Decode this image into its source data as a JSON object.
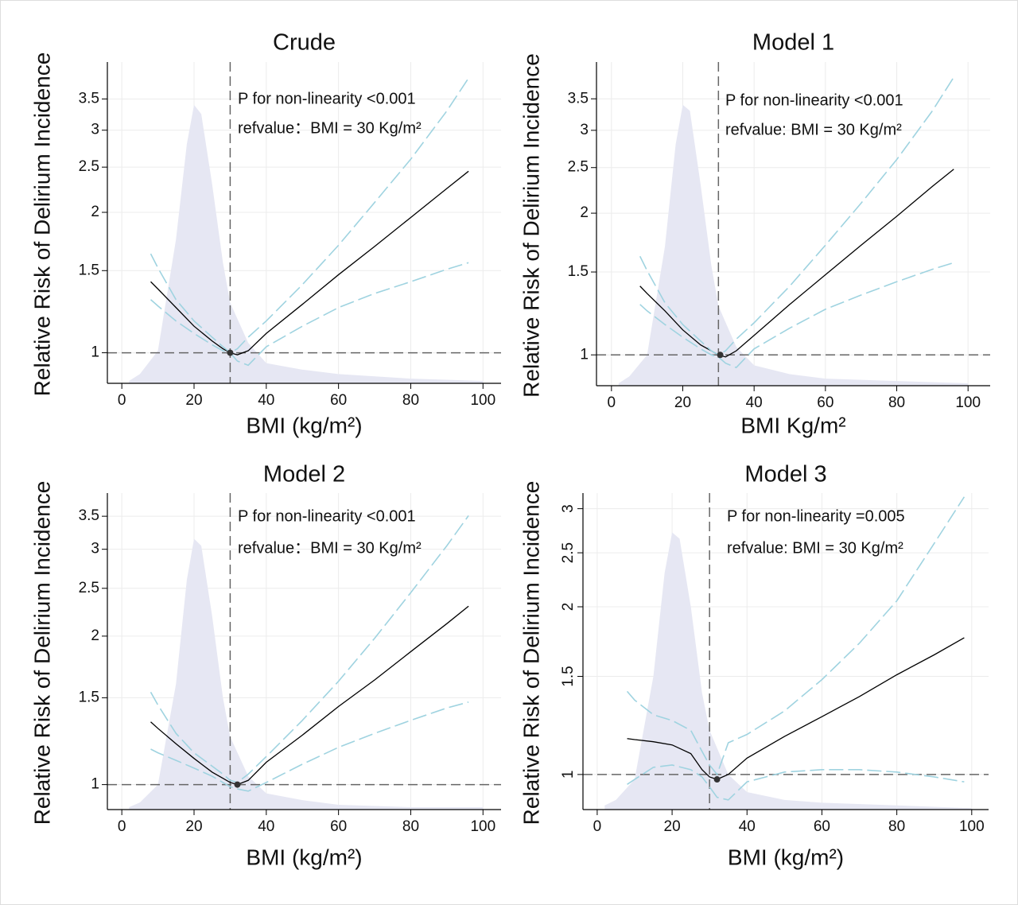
{
  "chart_data": [
    {
      "type": "line",
      "title": "Crude",
      "xlabel": "BMI (kg/m²)",
      "ylabel": "Relative Risk of Delirium Incidence",
      "annotations": [
        "P for non-linearity <0.001",
        "refvalue：BMI = 30 Kg/m²"
      ],
      "log_y": true,
      "grid": true,
      "xlim": [
        -4,
        105
      ],
      "ylim": [
        0.86,
        4.2
      ],
      "xticks": [
        0,
        20,
        40,
        60,
        80,
        100
      ],
      "yticks": [
        1,
        1.5,
        2,
        2.5,
        3,
        3.5
      ],
      "ref_x": 30,
      "ref_y": 1,
      "ref_point": {
        "x": 30,
        "y": 1
      },
      "x": [
        8,
        10,
        15,
        20,
        25,
        28,
        30,
        32,
        35,
        40,
        50,
        60,
        70,
        80,
        90,
        96
      ],
      "series": [
        {
          "color": "#000000",
          "values": [
            1.42,
            1.37,
            1.25,
            1.14,
            1.06,
            1.02,
            1.0,
            0.99,
            1.01,
            1.1,
            1.27,
            1.47,
            1.69,
            1.95,
            2.25,
            2.45
          ]
        },
        {
          "color": "#9fd3e0",
          "dashed": true,
          "values": [
            1.63,
            1.52,
            1.3,
            1.17,
            1.08,
            1.03,
            1.0,
            1.02,
            1.08,
            1.17,
            1.4,
            1.7,
            2.1,
            2.6,
            3.3,
            3.88
          ]
        },
        {
          "color": "#9fd3e0",
          "dashed": true,
          "values": [
            1.3,
            1.26,
            1.17,
            1.1,
            1.04,
            1.01,
            1.0,
            0.96,
            0.94,
            1.03,
            1.14,
            1.25,
            1.34,
            1.42,
            1.51,
            1.56
          ]
        }
      ],
      "density": {
        "color": "#e6e7f3",
        "x": [
          2,
          5,
          10,
          15,
          18,
          20,
          22,
          25,
          28,
          30,
          35,
          40,
          50,
          60,
          80,
          100
        ],
        "values": [
          0.87,
          0.9,
          1.01,
          1.75,
          2.8,
          3.4,
          3.25,
          2.3,
          1.56,
          1.28,
          1.05,
          0.95,
          0.92,
          0.9,
          0.88,
          0.87
        ]
      }
    },
    {
      "type": "line",
      "title": "Model 1",
      "xlabel": "BMI Kg/m²",
      "ylabel": "Relative Risk of Delirium Incidence",
      "annotations": [
        "P for non-linearity <0.001",
        "refvalue: BMI = 30 Kg/m²"
      ],
      "log_y": true,
      "grid": true,
      "xlim": [
        -4.2,
        106.2
      ],
      "ylim": [
        0.86,
        4.19
      ],
      "xticks": [
        0,
        20,
        40,
        60,
        80,
        100
      ],
      "yticks": [
        1,
        1.5,
        2,
        2.5,
        3,
        3.5
      ],
      "ref_x": 30,
      "ref_y": 1,
      "ref_point": {
        "x": 30.5,
        "y": 1
      },
      "x": [
        8,
        10,
        15,
        20,
        25,
        28,
        30,
        32,
        35,
        40,
        50,
        60,
        70,
        80,
        90,
        96
      ],
      "series": [
        {
          "color": "#000000",
          "values": [
            1.4,
            1.35,
            1.24,
            1.13,
            1.05,
            1.02,
            1.0,
            0.99,
            1.02,
            1.1,
            1.28,
            1.48,
            1.71,
            1.97,
            2.28,
            2.48
          ]
        },
        {
          "color": "#9fd3e0",
          "dashed": true,
          "values": [
            1.62,
            1.51,
            1.29,
            1.16,
            1.07,
            1.02,
            1.0,
            1.02,
            1.08,
            1.17,
            1.4,
            1.71,
            2.1,
            2.6,
            3.3,
            3.89
          ]
        },
        {
          "color": "#9fd3e0",
          "dashed": true,
          "values": [
            1.28,
            1.24,
            1.16,
            1.09,
            1.03,
            1.0,
            0.99,
            0.96,
            0.94,
            1.03,
            1.14,
            1.25,
            1.34,
            1.43,
            1.52,
            1.57
          ]
        }
      ],
      "density": {
        "color": "#e6e7f3",
        "x": [
          2,
          5,
          10,
          15,
          18,
          20,
          22,
          25,
          28,
          30,
          35,
          40,
          50,
          60,
          80,
          100
        ],
        "values": [
          0.87,
          0.9,
          1.0,
          1.7,
          2.8,
          3.4,
          3.3,
          2.3,
          1.55,
          1.27,
          1.04,
          0.95,
          0.91,
          0.89,
          0.88,
          0.87
        ]
      }
    },
    {
      "type": "line",
      "title": "Model 2",
      "xlabel": "BMI (kg/m²)",
      "ylabel": "Relative Risk of Delirium Incidence",
      "annotations": [
        "P for non-linearity <0.001",
        "refvalue：BMI = 30 Kg/m²"
      ],
      "log_y": true,
      "grid": true,
      "xlim": [
        -4,
        105
      ],
      "ylim": [
        0.89,
        3.9
      ],
      "xticks": [
        0,
        20,
        40,
        60,
        80,
        100
      ],
      "yticks": [
        1,
        1.5,
        2,
        2.5,
        3,
        3.5
      ],
      "ref_x": 30,
      "ref_y": 1,
      "ref_point": {
        "x": 32,
        "y": 1
      },
      "x": [
        8,
        10,
        15,
        20,
        25,
        28,
        30,
        32,
        35,
        40,
        50,
        60,
        70,
        80,
        90,
        96
      ],
      "series": [
        {
          "color": "#000000",
          "values": [
            1.34,
            1.3,
            1.21,
            1.13,
            1.06,
            1.03,
            1.01,
            1.0,
            1.02,
            1.11,
            1.26,
            1.44,
            1.63,
            1.86,
            2.12,
            2.3
          ]
        },
        {
          "color": "#9fd3e0",
          "dashed": true,
          "values": [
            1.54,
            1.45,
            1.27,
            1.16,
            1.09,
            1.05,
            1.02,
            1.01,
            1.05,
            1.14,
            1.35,
            1.62,
            1.98,
            2.45,
            3.05,
            3.51
          ]
        },
        {
          "color": "#9fd3e0",
          "dashed": true,
          "values": [
            1.18,
            1.16,
            1.12,
            1.08,
            1.04,
            1.01,
            0.99,
            0.98,
            0.97,
            1.01,
            1.1,
            1.19,
            1.27,
            1.35,
            1.43,
            1.47
          ]
        }
      ],
      "density": {
        "color": "#e6e7f3",
        "x": [
          2,
          5,
          10,
          15,
          18,
          20,
          22,
          25,
          28,
          30,
          35,
          40,
          50,
          60,
          80,
          100
        ],
        "values": [
          0.9,
          0.92,
          1.0,
          1.6,
          2.6,
          3.15,
          3.05,
          2.2,
          1.5,
          1.25,
          1.04,
          0.96,
          0.93,
          0.91,
          0.9,
          0.9
        ]
      }
    },
    {
      "type": "line",
      "title": "Model 3",
      "xlabel": "BMI (kg/m²)",
      "ylabel": "Relative Risk of Delirium Incidence",
      "annotations": [
        "P for non-linearity =0.005",
        "refvalue: BMI = 30 Kg/m²"
      ],
      "log_y": true,
      "grid": true,
      "xlim": [
        -3.8,
        104.5
      ],
      "ylim": [
        0.865,
        3.2
      ],
      "xticks": [
        0,
        20,
        40,
        60,
        80,
        100
      ],
      "yticks": [
        1,
        1.5,
        2,
        2.5,
        3
      ],
      "ref_x": 30,
      "ref_y": 1,
      "ref_point": {
        "x": 32,
        "y": 0.98
      },
      "x": [
        8,
        10,
        15,
        20,
        25,
        28,
        30,
        32,
        35,
        40,
        50,
        60,
        70,
        80,
        90,
        98
      ],
      "series": [
        {
          "color": "#000000",
          "values": [
            1.16,
            1.155,
            1.145,
            1.13,
            1.09,
            1.02,
            0.99,
            0.98,
            1.0,
            1.07,
            1.17,
            1.27,
            1.38,
            1.51,
            1.64,
            1.76
          ]
        },
        {
          "color": "#9fd3e0",
          "dashed": true,
          "values": [
            1.41,
            1.36,
            1.28,
            1.25,
            1.2,
            1.1,
            1.04,
            1.0,
            1.14,
            1.18,
            1.3,
            1.48,
            1.72,
            2.05,
            2.6,
            3.15
          ]
        },
        {
          "color": "#9fd3e0",
          "dashed": true,
          "values": [
            0.96,
            0.98,
            1.03,
            1.04,
            1.02,
            0.99,
            0.95,
            0.91,
            0.9,
            0.97,
            1.01,
            1.02,
            1.02,
            1.01,
            0.99,
            0.97
          ]
        }
      ],
      "density": {
        "color": "#e6e7f3",
        "x": [
          2,
          5,
          10,
          15,
          18,
          20,
          22,
          25,
          28,
          30,
          35,
          40,
          50,
          60,
          80,
          100
        ],
        "values": [
          0.88,
          0.9,
          0.98,
          1.5,
          2.3,
          2.72,
          2.65,
          2.0,
          1.4,
          1.2,
          1.0,
          0.93,
          0.9,
          0.89,
          0.88,
          0.87
        ]
      }
    }
  ]
}
